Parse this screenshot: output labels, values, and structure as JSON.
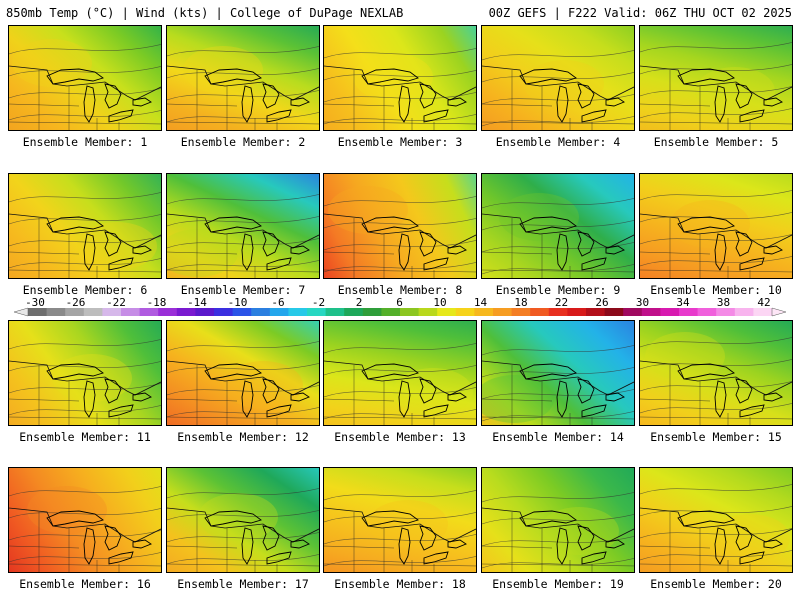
{
  "header": {
    "left": "850mb Temp (°C) | Wind (kts) | College of DuPage NEXLAB",
    "right": "00Z GEFS | F222 Valid: 06Z THU OCT 02 2025"
  },
  "caption_prefix": "Ensemble Member:",
  "members": [
    {
      "number": 1,
      "label": "Ensemble Member: 1",
      "fill": [
        "#f2a31f",
        "#f6b61e",
        "#f0d21a",
        "#c8e01c",
        "#7ccb24",
        "#2fb24a"
      ]
    },
    {
      "number": 2,
      "label": "Ensemble Member: 2",
      "fill": [
        "#f49a22",
        "#f4b21f",
        "#f2d81a",
        "#b8dc1e",
        "#5cc235",
        "#1fa85a"
      ]
    },
    {
      "number": 3,
      "label": "Ensemble Member: 3",
      "fill": [
        "#f6a820",
        "#f6bf1d",
        "#f4df1a",
        "#dce61a",
        "#9bd320",
        "#33d0b8"
      ]
    },
    {
      "number": 4,
      "label": "Ensemble Member: 4",
      "fill": [
        "#f49a22",
        "#f6b21e",
        "#f2cf1b",
        "#e6e01a",
        "#c6de1c",
        "#8ccf22"
      ]
    },
    {
      "number": 5,
      "label": "Ensemble Member: 5",
      "fill": [
        "#f2b41e",
        "#efd21b",
        "#d7e01a",
        "#a5d61f",
        "#5cc235",
        "#1fa85a"
      ]
    },
    {
      "number": 6,
      "label": "Ensemble Member: 6",
      "fill": [
        "#f4a521",
        "#f6ba1e",
        "#f2d41b",
        "#c7de1c",
        "#73c82a",
        "#2db15a"
      ]
    },
    {
      "number": 7,
      "label": "Ensemble Member: 7",
      "fill": [
        "#f3b11f",
        "#efd31b",
        "#b9dc1e",
        "#4fbf3a",
        "#27c9bd",
        "#2b7fe0"
      ]
    },
    {
      "number": 8,
      "label": "Ensemble Member: 8",
      "fill": [
        "#e83020",
        "#f47a24",
        "#f6a820",
        "#f4c81c",
        "#c6de1c",
        "#33d0b8"
      ]
    },
    {
      "number": 9,
      "label": "Ensemble Member: 9",
      "fill": [
        "#d6e01a",
        "#a9d620",
        "#6fc62b",
        "#2fae4a",
        "#27c9bd",
        "#23b2e8"
      ]
    },
    {
      "number": 10,
      "label": "Ensemble Member: 10",
      "fill": [
        "#f47a24",
        "#f69a22",
        "#f6b41e",
        "#f2cf1b",
        "#dce61a",
        "#b2da1e"
      ]
    },
    {
      "number": 11,
      "label": "Ensemble Member: 11",
      "fill": [
        "#f4a822",
        "#f4c21d",
        "#e6e01a",
        "#a9d620",
        "#4fbf3a",
        "#1fa85a"
      ]
    },
    {
      "number": 12,
      "label": "Ensemble Member: 12",
      "fill": [
        "#f06a24",
        "#f49022",
        "#f6b41e",
        "#e8df1a",
        "#7ccb24",
        "#33d0b8"
      ]
    },
    {
      "number": 13,
      "label": "Ensemble Member: 13",
      "fill": [
        "#f6b81e",
        "#f2d21b",
        "#dce61a",
        "#9bd320",
        "#4fbf3a",
        "#1fa85a"
      ]
    },
    {
      "number": 14,
      "label": "Ensemble Member: 14",
      "fill": [
        "#f6c11d",
        "#b9dc1e",
        "#4fbf3a",
        "#27c9bd",
        "#23b2e8",
        "#2b7fe0"
      ]
    },
    {
      "number": 15,
      "label": "Ensemble Member: 15",
      "fill": [
        "#f6b41e",
        "#f2cf1b",
        "#d7e01a",
        "#9bd320",
        "#4fbf3a",
        "#1fa85a"
      ]
    },
    {
      "number": 16,
      "label": "Ensemble Member: 16",
      "fill": [
        "#e02e20",
        "#f05a22",
        "#f48a22",
        "#f6ae1f",
        "#f2cf1b",
        "#dce61a"
      ]
    },
    {
      "number": 17,
      "label": "Ensemble Member: 17",
      "fill": [
        "#f4a822",
        "#f4c21d",
        "#c6de1c",
        "#5cc235",
        "#1fa85a",
        "#27c9bd"
      ]
    },
    {
      "number": 18,
      "label": "Ensemble Member: 18",
      "fill": [
        "#f48a22",
        "#f6aa20",
        "#f6c31d",
        "#f2dc1a",
        "#c6de1c",
        "#7ccb24"
      ]
    },
    {
      "number": 19,
      "label": "Ensemble Member: 19",
      "fill": [
        "#f6c11d",
        "#e6e01a",
        "#b9dc1e",
        "#7ccb24",
        "#3bb84a",
        "#1fa85a"
      ]
    },
    {
      "number": 20,
      "label": "Ensemble Member: 20",
      "fill": [
        "#f49a22",
        "#f6b21e",
        "#f2cf1b",
        "#dce61a",
        "#b2da1e",
        "#7ccb24"
      ]
    }
  ],
  "colorbar": {
    "ticks": [
      "-30",
      "-26",
      "-22",
      "-18",
      "-14",
      "-10",
      "-6",
      "-2",
      "2",
      "6",
      "10",
      "14",
      "18",
      "22",
      "26",
      "30",
      "34",
      "38",
      "42"
    ],
    "colors": [
      "#6e6e6e",
      "#8a8a8a",
      "#a5a5a5",
      "#bdbdbd",
      "#d6b8ea",
      "#c68de6",
      "#b05be0",
      "#9a2fd8",
      "#7a1ad0",
      "#5b19cc",
      "#3b2fe0",
      "#2b54e8",
      "#2b7fe0",
      "#23a6ec",
      "#27c9e8",
      "#27d7c2",
      "#1ec08a",
      "#1ea85a",
      "#2f9e3a",
      "#54b02a",
      "#8cc620",
      "#b9d81c",
      "#e6e81a",
      "#f6d31a",
      "#f6b81e",
      "#f69d22",
      "#f47e24",
      "#f05a22",
      "#e83020",
      "#d81a1a",
      "#b4101a",
      "#8c0a1a",
      "#a00a60",
      "#c0108a",
      "#d81ab0",
      "#e83acc",
      "#f060dc",
      "#f48ae6",
      "#f8b4ee",
      "#fcd6f4"
    ]
  }
}
